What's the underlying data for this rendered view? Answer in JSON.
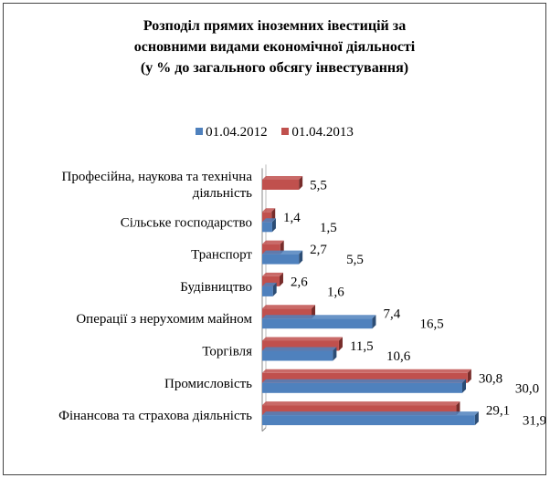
{
  "chart_data": {
    "type": "bar",
    "orientation": "horizontal",
    "title": [
      "Розподіл прямих іноземних івестицій за",
      "основними видами економічної діяльності",
      "(у % до загального обсягу інвестування)"
    ],
    "categories": [
      [
        "Професійна, наукова та технічна",
        " діяльність"
      ],
      [
        "Сільське господарство"
      ],
      [
        "Транспорт"
      ],
      [
        "Будівництво"
      ],
      [
        "Операції з нерухомим майном"
      ],
      [
        "Торгівля"
      ],
      [
        "Промисловість"
      ],
      [
        "Фінансова та страхова діяльність"
      ]
    ],
    "series": [
      {
        "name": "01.04.2012",
        "color": "#4F81BD",
        "dark": "#2C4D75",
        "values": [
          null,
          1.5,
          5.5,
          1.6,
          16.5,
          10.6,
          30.0,
          31.9
        ],
        "labels": [
          "",
          "1,5",
          "5,5",
          "1,6",
          "16,5",
          "10,6",
          "30,0",
          "31,9"
        ]
      },
      {
        "name": "01.04.2013",
        "color": "#C0504D",
        "dark": "#772C2A",
        "values": [
          5.5,
          1.4,
          2.7,
          2.6,
          7.4,
          11.5,
          30.8,
          29.1
        ],
        "labels": [
          "5,5",
          "1,4",
          "2,7",
          "2,6",
          "7,4",
          "11,5",
          "30,8",
          "29,1"
        ]
      }
    ],
    "xlim": [
      0,
      35
    ],
    "legend": "top-center",
    "grid": false
  }
}
